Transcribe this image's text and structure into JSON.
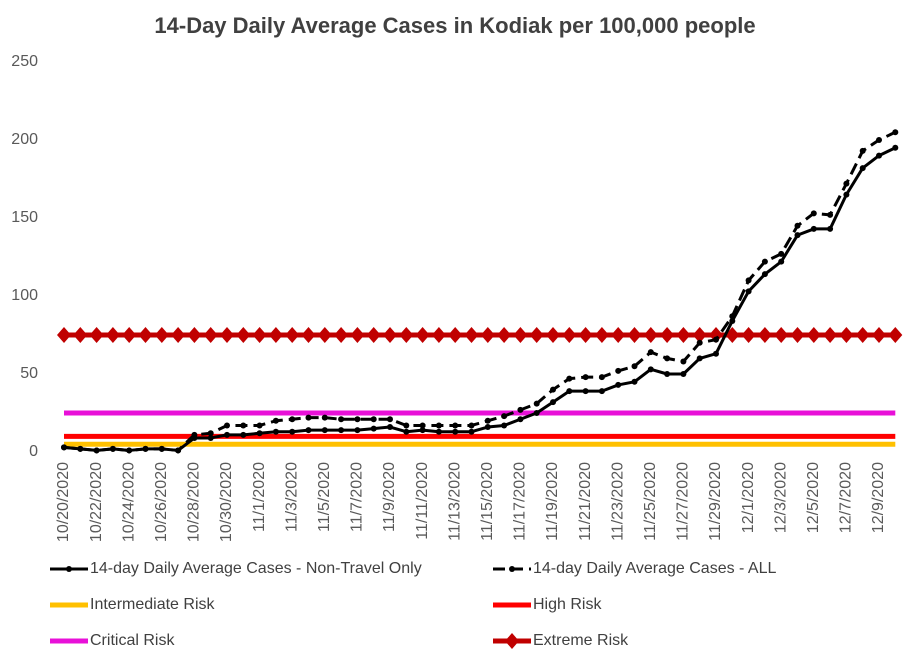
{
  "chart_data": {
    "type": "line",
    "title": "14-Day Daily Average Cases in Kodiak per 100,000 people",
    "categories": [
      "10/20/2020",
      null,
      "10/22/2020",
      null,
      "10/24/2020",
      null,
      "10/26/2020",
      null,
      "10/28/2020",
      null,
      "10/30/2020",
      null,
      "11/1/2020",
      null,
      "11/3/2020",
      null,
      "11/5/2020",
      null,
      "11/7/2020",
      null,
      "11/9/2020",
      null,
      "11/11/2020",
      null,
      "11/13/2020",
      null,
      "11/15/2020",
      null,
      "11/17/2020",
      null,
      "11/19/2020",
      null,
      "11/21/2020",
      null,
      "11/23/2020",
      null,
      "11/25/2020",
      null,
      "11/27/2020",
      null,
      "11/29/2020",
      null,
      "12/1/2020",
      null,
      "12/3/2020",
      null,
      "12/5/2020",
      null,
      "12/7/2020",
      null,
      "12/9/2020",
      null
    ],
    "series": [
      {
        "name": "14-day Daily Average Cases - Non-Travel Only",
        "color": "#000000",
        "style": "solid",
        "marker": "circle",
        "values": [
          3,
          2,
          1,
          2,
          1,
          2,
          2,
          1,
          9,
          9,
          11,
          11,
          12,
          13,
          13,
          14,
          14,
          14,
          14,
          15,
          16,
          13,
          14,
          13,
          13,
          13,
          16,
          17,
          21,
          25,
          32,
          39,
          39,
          39,
          43,
          45,
          53,
          50,
          50,
          60,
          63,
          84,
          103,
          114,
          122,
          139,
          143,
          143,
          165,
          182,
          190,
          195
        ]
      },
      {
        "name": "14-day Daily Average Cases - ALL",
        "color": "#000000",
        "style": "dashed",
        "marker": "circle",
        "values": [
          3,
          2,
          1,
          2,
          1,
          2,
          2,
          1,
          11,
          12,
          17,
          17,
          17,
          20,
          21,
          22,
          22,
          21,
          21,
          21,
          21,
          17,
          17,
          17,
          17,
          17,
          20,
          23,
          27,
          31,
          40,
          47,
          48,
          48,
          52,
          55,
          64,
          60,
          58,
          70,
          72,
          87,
          110,
          122,
          127,
          145,
          153,
          152,
          172,
          193,
          200,
          205
        ]
      },
      {
        "name": "Intermediate Risk",
        "color": "#FFC000",
        "style": "solid",
        "marker": "none",
        "values": [
          5,
          5,
          5,
          5,
          5,
          5,
          5,
          5,
          5,
          5,
          5,
          5,
          5,
          5,
          5,
          5,
          5,
          5,
          5,
          5,
          5,
          5,
          5,
          5,
          5,
          5,
          5,
          5,
          5,
          5,
          5,
          5,
          5,
          5,
          5,
          5,
          5,
          5,
          5,
          5,
          5,
          5,
          5,
          5,
          5,
          5,
          5,
          5,
          5,
          5,
          5,
          5
        ]
      },
      {
        "name": "High Risk",
        "color": "#FF0000",
        "style": "solid",
        "marker": "none",
        "values": [
          10,
          10,
          10,
          10,
          10,
          10,
          10,
          10,
          10,
          10,
          10,
          10,
          10,
          10,
          10,
          10,
          10,
          10,
          10,
          10,
          10,
          10,
          10,
          10,
          10,
          10,
          10,
          10,
          10,
          10,
          10,
          10,
          10,
          10,
          10,
          10,
          10,
          10,
          10,
          10,
          10,
          10,
          10,
          10,
          10,
          10,
          10,
          10,
          10,
          10,
          10,
          10
        ]
      },
      {
        "name": "Critical Risk",
        "color": "#E810D8",
        "style": "solid",
        "marker": "none",
        "values": [
          25,
          25,
          25,
          25,
          25,
          25,
          25,
          25,
          25,
          25,
          25,
          25,
          25,
          25,
          25,
          25,
          25,
          25,
          25,
          25,
          25,
          25,
          25,
          25,
          25,
          25,
          25,
          25,
          25,
          25,
          25,
          25,
          25,
          25,
          25,
          25,
          25,
          25,
          25,
          25,
          25,
          25,
          25,
          25,
          25,
          25,
          25,
          25,
          25,
          25,
          25,
          25
        ]
      },
      {
        "name": "Extreme Risk",
        "color": "#C00000",
        "style": "solid",
        "marker": "diamond",
        "values": [
          75,
          75,
          75,
          75,
          75,
          75,
          75,
          75,
          75,
          75,
          75,
          75,
          75,
          75,
          75,
          75,
          75,
          75,
          75,
          75,
          75,
          75,
          75,
          75,
          75,
          75,
          75,
          75,
          75,
          75,
          75,
          75,
          75,
          75,
          75,
          75,
          75,
          75,
          75,
          75,
          75,
          75,
          75,
          75,
          75,
          75,
          75,
          75,
          75,
          75,
          75,
          75
        ]
      }
    ],
    "ylim": [
      0,
      250
    ],
    "yticks": [
      0,
      50,
      100,
      150,
      200,
      250
    ],
    "grid": false
  }
}
